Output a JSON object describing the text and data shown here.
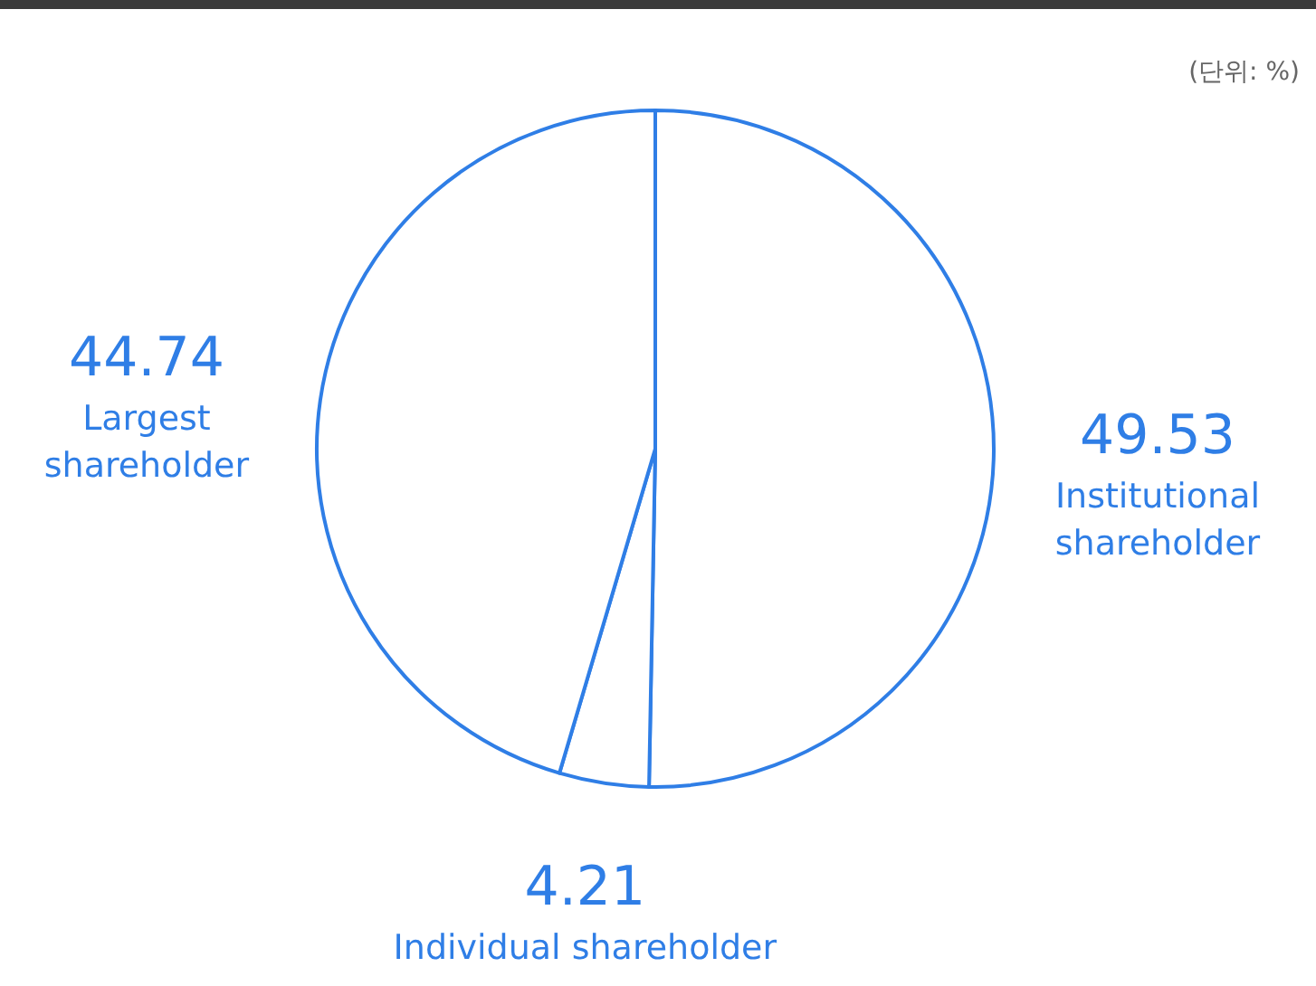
{
  "chart_data": {
    "type": "pie",
    "annotations": [
      "(단위: %)"
    ],
    "categories": [
      "Institutional shareholder",
      "Individual shareholder",
      "Largest shareholder"
    ],
    "values": [
      49.53,
      4.21,
      44.74
    ],
    "colors": [
      "#2f7ee6",
      "#2f7ee6",
      "#2f7ee6"
    ],
    "value_labels": [
      "49.53",
      "4.21",
      "44.74"
    ],
    "legend": false
  }
}
